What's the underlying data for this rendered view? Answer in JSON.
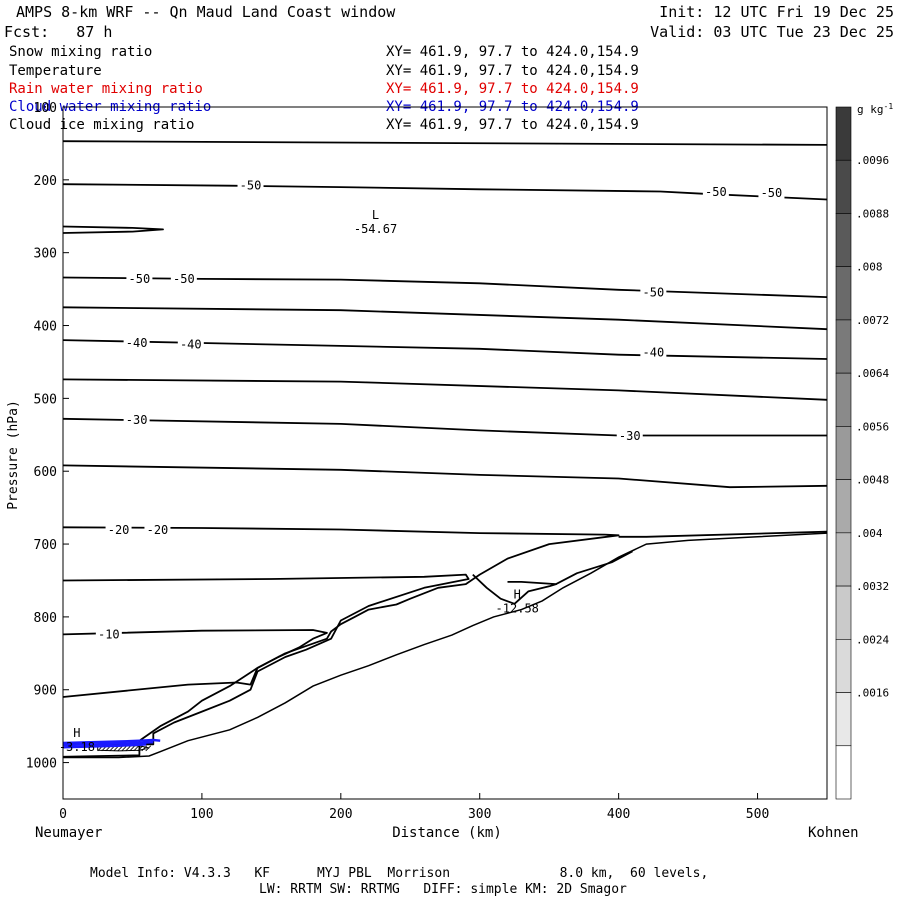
{
  "header": {
    "title": "AMPS 8-km WRF -- Qn Maud Land Coast window",
    "fcst": "Fcst:   87 h",
    "init": "Init: 12 UTC Fri 19 Dec 25",
    "valid": "Valid: 03 UTC Tue 23 Dec 25"
  },
  "fields": [
    {
      "name": "Snow mixing ratio",
      "xy": "XY= 461.9, 97.7 to 424.0,154.9",
      "color": "#000000"
    },
    {
      "name": "Temperature",
      "xy": "XY= 461.9, 97.7 to 424.0,154.9",
      "color": "#000000"
    },
    {
      "name": "Rain water mixing ratio",
      "xy": "XY= 461.9, 97.7 to 424.0,154.9",
      "color": "#e00000"
    },
    {
      "name": "Cloud water mixing ratio",
      "xy": "XY= 461.9, 97.7 to 424.0,154.9",
      "color": "#0000cc"
    },
    {
      "name": "Cloud ice mixing ratio",
      "xy": "XY= 461.9, 97.7 to 424.0,154.9",
      "color": "#000000"
    }
  ],
  "footer": {
    "line1": "Model Info: V4.3.3   KF      MYJ PBL  Morrison              8.0 km,  60 levels,",
    "line2": "LW: RRTM SW: RRTMG   DIFF: simple KM: 2D Smagor"
  },
  "chart_data": {
    "type": "contour-cross-section",
    "xlabel": "Distance (km)",
    "ylabel": "Pressure (hPa)",
    "x_start_label": "Neumayer",
    "x_end_label": "Kohnen",
    "xlim": [
      0,
      550
    ],
    "ylim": [
      1050,
      100
    ],
    "xticks": [
      0,
      100,
      200,
      300,
      400,
      500
    ],
    "yticks": [
      100,
      200,
      300,
      400,
      500,
      600,
      700,
      800,
      900,
      1000
    ],
    "colorbar": {
      "unit": "g kg",
      "unit_exp": "-1",
      "ticks": [
        ".0096",
        ".0088",
        ".008",
        ".0072",
        ".0064",
        ".0056",
        ".0048",
        ".004",
        ".0032",
        ".0024",
        ".0016"
      ],
      "grays": [
        "#3a3a3a",
        "#4a4a4a",
        "#5a5a5a",
        "#6a6a6a",
        "#7a7a7a",
        "#8a8a8a",
        "#9a9a9a",
        "#aaaaaa",
        "#bababa",
        "#cacaca",
        "#dadada",
        "#e8e8e8",
        "#ffffff"
      ]
    },
    "isotherms": [
      {
        "points": [
          [
            0,
            147
          ],
          [
            550,
            152
          ]
        ]
      },
      {
        "label": "-50",
        "label_at": [
          [
            135,
            208
          ],
          [
            470,
            217
          ],
          [
            510,
            218
          ]
        ],
        "points": [
          [
            0,
            206
          ],
          [
            120,
            208
          ],
          [
            200,
            210
          ],
          [
            300,
            213
          ],
          [
            430,
            216
          ],
          [
            460,
            219
          ],
          [
            550,
            227
          ]
        ]
      },
      {
        "points": [
          [
            0,
            264
          ],
          [
            50,
            266
          ],
          [
            72,
            268
          ],
          [
            50,
            271
          ],
          [
            0,
            273
          ]
        ]
      },
      {
        "label": "-50",
        "label_at": [
          [
            55,
            336
          ],
          [
            87,
            336
          ],
          [
            425,
            355
          ]
        ],
        "points": [
          [
            0,
            334
          ],
          [
            100,
            336
          ],
          [
            200,
            337
          ],
          [
            300,
            342
          ],
          [
            400,
            351
          ],
          [
            550,
            361
          ]
        ]
      },
      {
        "points": [
          [
            0,
            375
          ],
          [
            200,
            379
          ],
          [
            400,
            392
          ],
          [
            550,
            405
          ]
        ]
      },
      {
        "label": "-40",
        "label_at": [
          [
            53,
            424
          ],
          [
            92,
            426
          ],
          [
            425,
            437
          ]
        ],
        "points": [
          [
            0,
            420
          ],
          [
            100,
            424
          ],
          [
            200,
            428
          ],
          [
            300,
            432
          ],
          [
            400,
            440
          ],
          [
            550,
            446
          ]
        ]
      },
      {
        "points": [
          [
            0,
            474
          ],
          [
            200,
            477
          ],
          [
            400,
            489
          ],
          [
            550,
            502
          ]
        ]
      },
      {
        "label": "-30",
        "label_at": [
          [
            53,
            530
          ],
          [
            408,
            552
          ]
        ],
        "points": [
          [
            0,
            528
          ],
          [
            200,
            535
          ],
          [
            300,
            544
          ],
          [
            400,
            551
          ],
          [
            550,
            551
          ]
        ]
      },
      {
        "points": [
          [
            0,
            592
          ],
          [
            200,
            598
          ],
          [
            300,
            605
          ],
          [
            400,
            610
          ],
          [
            480,
            622
          ],
          [
            550,
            620
          ]
        ]
      },
      {
        "label": "-20",
        "label_at": [
          [
            40,
            681
          ],
          [
            68,
            681
          ]
        ],
        "points": [
          [
            0,
            677
          ],
          [
            100,
            678
          ],
          [
            200,
            680
          ],
          [
            300,
            685
          ],
          [
            390,
            687
          ],
          [
            400,
            688
          ],
          [
            350,
            700
          ],
          [
            320,
            720
          ],
          [
            300,
            742
          ],
          [
            290,
            755
          ],
          [
            270,
            760
          ],
          [
            250,
            775
          ],
          [
            240,
            783
          ],
          [
            220,
            790
          ],
          [
            210,
            800
          ],
          [
            200,
            810
          ],
          [
            193,
            820
          ],
          [
            190,
            830
          ],
          [
            160,
            850
          ],
          [
            140,
            870
          ],
          [
            120,
            895
          ],
          [
            100,
            915
          ],
          [
            90,
            930
          ],
          [
            70,
            950
          ],
          [
            55,
            970
          ],
          [
            55,
            990
          ],
          [
            0,
            992
          ]
        ]
      },
      {
        "points": [
          [
            400,
            690
          ],
          [
            420,
            690
          ],
          [
            550,
            683
          ]
        ]
      },
      {
        "points": [
          [
            0,
            750
          ],
          [
            150,
            748
          ],
          [
            260,
            745
          ],
          [
            290,
            742
          ],
          [
            292,
            748
          ],
          [
            260,
            760
          ],
          [
            220,
            785
          ],
          [
            200,
            805
          ],
          [
            193,
            830
          ],
          [
            175,
            845
          ],
          [
            160,
            855
          ],
          [
            140,
            875
          ],
          [
            135,
            900
          ],
          [
            120,
            915
          ],
          [
            100,
            930
          ],
          [
            80,
            945
          ],
          [
            65,
            960
          ],
          [
            65,
            975
          ],
          [
            0,
            975
          ]
        ]
      },
      {
        "label": "-10",
        "label_at": [
          [
            33,
            824
          ]
        ],
        "points": [
          [
            0,
            824
          ],
          [
            100,
            819
          ],
          [
            180,
            818
          ],
          [
            190,
            822
          ],
          [
            180,
            830
          ],
          [
            170,
            842
          ],
          [
            155,
            855
          ],
          [
            140,
            870
          ],
          [
            135,
            893
          ],
          [
            125,
            890
          ],
          [
            90,
            893
          ],
          [
            0,
            910
          ]
        ]
      },
      {
        "points": [
          [
            295,
            742
          ],
          [
            305,
            760
          ],
          [
            315,
            775
          ],
          [
            325,
            782
          ],
          [
            335,
            765
          ],
          [
            350,
            758
          ],
          [
            355,
            755
          ],
          [
            330,
            752
          ],
          [
            320,
            752
          ]
        ]
      },
      {
        "points": [
          [
            355,
            755
          ],
          [
            370,
            740
          ],
          [
            395,
            725
          ],
          [
            410,
            710
          ]
        ]
      }
    ],
    "extrema": [
      {
        "type": "L",
        "value": "-54.67",
        "at": [
          225,
          262
        ]
      },
      {
        "type": "H",
        "value": "-12.58",
        "at": [
          327,
          783
        ]
      },
      {
        "type": "H",
        "value": "-3.18",
        "at": [
          10,
          973
        ]
      }
    ],
    "cloud_water": [
      {
        "points": [
          [
            0,
            973
          ],
          [
            20,
            972
          ],
          [
            40,
            971
          ],
          [
            55,
            970
          ],
          [
            65,
            969
          ],
          [
            70,
            970
          ]
        ]
      },
      {
        "points": [
          [
            0,
            976
          ],
          [
            20,
            975
          ],
          [
            40,
            974
          ],
          [
            55,
            973
          ],
          [
            65,
            972
          ]
        ]
      },
      {
        "points": [
          [
            0,
            979
          ],
          [
            20,
            978
          ],
          [
            40,
            977
          ],
          [
            60,
            975
          ]
        ]
      }
    ],
    "hatch_region": [
      [
        25,
        983
      ],
      [
        40,
        984
      ],
      [
        55,
        983
      ],
      [
        62,
        980
      ],
      [
        55,
        977
      ],
      [
        40,
        977
      ],
      [
        25,
        978
      ]
    ],
    "terrain": [
      [
        0,
        993
      ],
      [
        40,
        993
      ],
      [
        62,
        991
      ],
      [
        70,
        985
      ],
      [
        90,
        970
      ],
      [
        120,
        955
      ],
      [
        140,
        938
      ],
      [
        160,
        918
      ],
      [
        180,
        895
      ],
      [
        200,
        880
      ],
      [
        220,
        867
      ],
      [
        240,
        852
      ],
      [
        260,
        838
      ],
      [
        280,
        825
      ],
      [
        295,
        812
      ],
      [
        310,
        800
      ],
      [
        330,
        790
      ],
      [
        345,
        778
      ],
      [
        360,
        760
      ],
      [
        380,
        740
      ],
      [
        400,
        718
      ],
      [
        420,
        700
      ],
      [
        450,
        695
      ],
      [
        500,
        690
      ],
      [
        550,
        685
      ]
    ]
  }
}
